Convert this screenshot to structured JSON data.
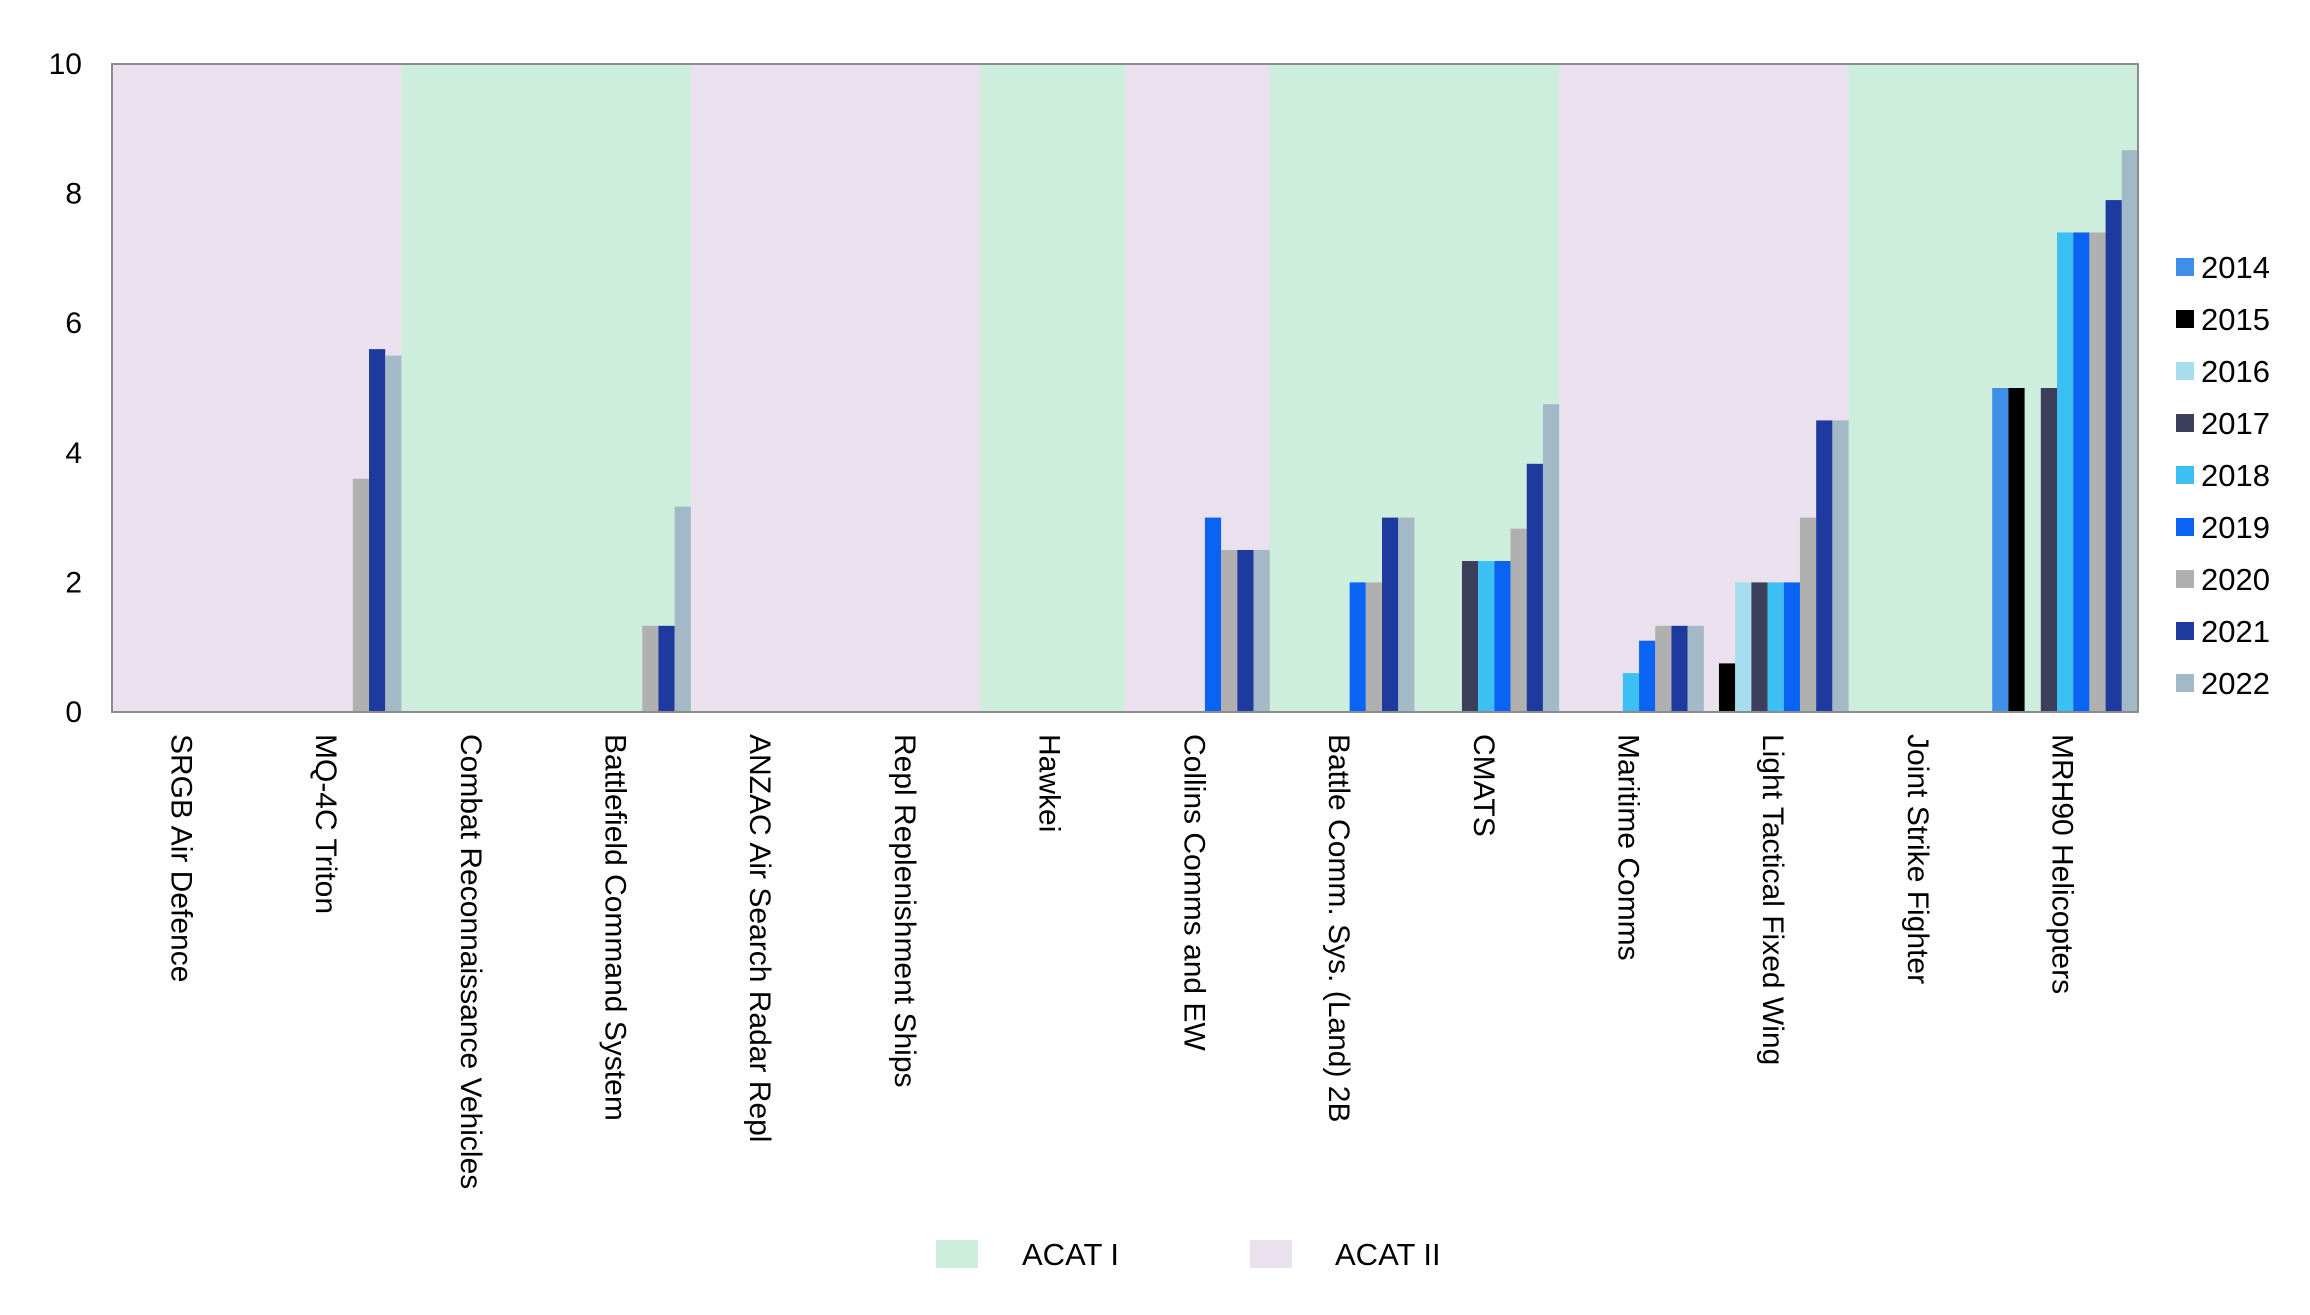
{
  "chart_data": {
    "type": "bar",
    "ylim": [
      0,
      10
    ],
    "yticks": [
      "0",
      "2",
      "4",
      "6",
      "8",
      "10"
    ],
    "categories": [
      "SRGB Air Defence",
      "MQ-4C Triton",
      "Combat Reconnaissance Vehicles",
      "Battlefield Command System",
      "ANZAC Air Search Radar Repl",
      "Repl Replenishment Ships",
      "Hawkei",
      "Collins Comms and EW",
      "Battle Comm. Sys. (Land) 2B",
      "CMATS",
      "Maritime Comms",
      "Light Tactical Fixed Wing",
      "Joint Strike Fighter",
      "MRH90 Helicopters"
    ],
    "category_bands": [
      "ACAT II",
      "ACAT II",
      "ACAT I",
      "ACAT I",
      "ACAT II",
      "ACAT II",
      "ACAT I",
      "ACAT II",
      "ACAT I",
      "ACAT I",
      "ACAT II",
      "ACAT II",
      "ACAT I",
      "ACAT I"
    ],
    "bands": [
      {
        "name": "ACAT I",
        "color": "#cdeedd"
      },
      {
        "name": "ACAT II",
        "color": "#ebe0ee"
      }
    ],
    "series": [
      {
        "name": "2014",
        "color": "#3f8fe8",
        "values": [
          0,
          0,
          0,
          0,
          0,
          0,
          0,
          0,
          0,
          0,
          0,
          0,
          0,
          5.0
        ]
      },
      {
        "name": "2015",
        "color": "#000000",
        "values": [
          0,
          0,
          0,
          0,
          0,
          0,
          0,
          0,
          0,
          0,
          0,
          0.75,
          0,
          5.0
        ]
      },
      {
        "name": "2016",
        "color": "#a8dcef",
        "values": [
          0,
          0,
          0,
          0,
          0,
          0,
          0,
          0,
          0,
          0,
          0,
          2.0,
          0,
          0
        ]
      },
      {
        "name": "2017",
        "color": "#3c3f5c",
        "values": [
          0,
          0,
          0,
          0,
          0,
          0,
          0,
          0,
          0,
          2.33,
          0,
          2.0,
          0,
          5.0
        ]
      },
      {
        "name": "2018",
        "color": "#3cc0f4",
        "values": [
          0,
          0,
          0,
          0,
          0,
          0,
          0,
          0,
          0,
          2.33,
          0.6,
          2.0,
          0,
          7.4
        ]
      },
      {
        "name": "2019",
        "color": "#0a63f2",
        "values": [
          0,
          0,
          0,
          0,
          0,
          0,
          0,
          3.0,
          2.0,
          2.33,
          1.1,
          2.0,
          0,
          7.4
        ]
      },
      {
        "name": "2020",
        "color": "#b0b0b0",
        "values": [
          0,
          3.6,
          0,
          1.33,
          0,
          0,
          0,
          2.5,
          2.0,
          2.83,
          1.33,
          3.0,
          0,
          7.4
        ]
      },
      {
        "name": "2021",
        "color": "#1f3a9e",
        "values": [
          0,
          5.6,
          0,
          1.33,
          0,
          0,
          0,
          2.5,
          3.0,
          3.83,
          1.33,
          4.5,
          0,
          7.9
        ]
      },
      {
        "name": "2022",
        "color": "#a3b9c7",
        "values": [
          0,
          5.5,
          0,
          3.17,
          0,
          0,
          0,
          2.5,
          3.0,
          4.75,
          1.33,
          4.5,
          0,
          8.67
        ]
      }
    ]
  }
}
